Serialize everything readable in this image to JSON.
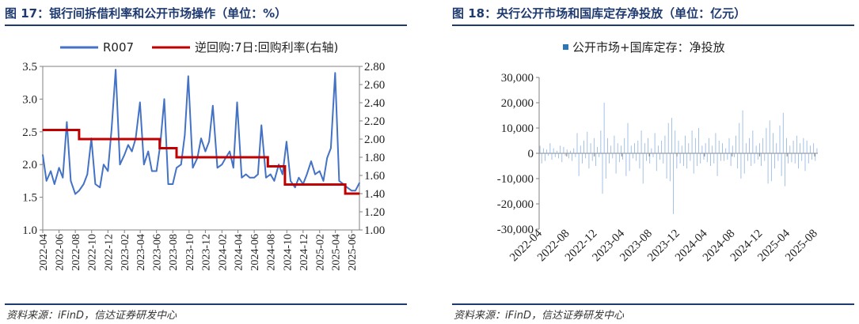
{
  "left_panel": {
    "title": "图 17：银行间拆借利率和公开市场操作（单位：%）",
    "source": "资料来源：iFinD，信达证券研发中心"
  },
  "right_panel": {
    "title": "图 18：央行公开市场和国库定存净投放（单位：亿元）",
    "source": "资料来源：iFinD，信达证券研发中心"
  },
  "chart_data": [
    {
      "type": "line",
      "legend_placement": "top",
      "x_tick_labels": [
        "2022-04",
        "2022-06",
        "2022-08",
        "2022-10",
        "2022-12",
        "2023-02",
        "2023-04",
        "2023-06",
        "2023-08",
        "2023-10",
        "2023-12",
        "2024-02",
        "2024-04",
        "2024-06",
        "2024-08",
        "2024-10",
        "2024-12",
        "2025-02",
        "2025-04",
        "2025-06"
      ],
      "y_left": {
        "ylim": [
          1.0,
          3.5
        ],
        "ticks": [
          "1.0",
          "1.5",
          "2.0",
          "2.5",
          "3.0",
          "3.5"
        ]
      },
      "y_right": {
        "ylim": [
          1.0,
          2.8
        ],
        "ticks": [
          "1.00",
          "1.20",
          "1.40",
          "1.60",
          "1.80",
          "2.00",
          "2.20",
          "2.40",
          "2.60",
          "2.80"
        ]
      },
      "series": [
        {
          "name": "R007",
          "axis": "left",
          "color": "#4472c4",
          "x": [
            "2022-04-01",
            "2022-04-15",
            "2022-05-01",
            "2022-05-15",
            "2022-06-01",
            "2022-06-15",
            "2022-06-30",
            "2022-07-15",
            "2022-08-01",
            "2022-08-15",
            "2022-09-01",
            "2022-09-15",
            "2022-09-30",
            "2022-10-15",
            "2022-11-01",
            "2022-11-15",
            "2022-12-01",
            "2022-12-15",
            "2022-12-30",
            "2023-01-15",
            "2023-02-01",
            "2023-02-15",
            "2023-03-01",
            "2023-03-15",
            "2023-03-31",
            "2023-04-15",
            "2023-05-01",
            "2023-05-15",
            "2023-06-01",
            "2023-06-15",
            "2023-06-30",
            "2023-07-15",
            "2023-08-01",
            "2023-08-15",
            "2023-09-01",
            "2023-09-15",
            "2023-09-28",
            "2023-10-15",
            "2023-11-01",
            "2023-11-15",
            "2023-12-01",
            "2023-12-15",
            "2023-12-29",
            "2024-01-15",
            "2024-02-01",
            "2024-02-15",
            "2024-03-01",
            "2024-03-15",
            "2024-03-29",
            "2024-04-15",
            "2024-05-01",
            "2024-05-15",
            "2024-06-01",
            "2024-06-15",
            "2024-06-28",
            "2024-07-15",
            "2024-08-01",
            "2024-08-15",
            "2024-09-01",
            "2024-09-15",
            "2024-09-30",
            "2024-10-15",
            "2024-11-01",
            "2024-11-15",
            "2024-12-01",
            "2024-12-15",
            "2024-12-31",
            "2025-01-15",
            "2025-02-01",
            "2025-02-15",
            "2025-03-01",
            "2025-03-15",
            "2025-03-31",
            "2025-04-15",
            "2025-05-01",
            "2025-05-15",
            "2025-06-01",
            "2025-06-15",
            "2025-06-30"
          ],
          "values": [
            2.15,
            1.75,
            1.9,
            1.7,
            1.95,
            1.8,
            2.65,
            1.75,
            1.55,
            1.6,
            1.7,
            1.85,
            2.4,
            1.7,
            1.65,
            2.0,
            1.9,
            2.55,
            3.45,
            2.0,
            2.15,
            2.3,
            2.2,
            2.4,
            2.95,
            2.0,
            2.2,
            1.9,
            1.9,
            2.3,
            3.0,
            1.7,
            1.7,
            1.95,
            2.0,
            2.45,
            3.35,
            1.95,
            2.1,
            2.4,
            2.2,
            2.35,
            2.9,
            1.95,
            2.0,
            2.1,
            2.2,
            1.95,
            2.95,
            1.8,
            1.85,
            1.8,
            1.8,
            1.85,
            2.6,
            1.8,
            1.85,
            1.75,
            2.0,
            1.85,
            2.35,
            1.75,
            1.65,
            1.8,
            1.7,
            1.85,
            2.05,
            1.85,
            1.9,
            1.75,
            2.1,
            2.25,
            3.4,
            1.75,
            1.7,
            1.65,
            1.6,
            1.6,
            1.72
          ]
        },
        {
          "name": "逆回购:7日:回购利率(右轴)",
          "axis": "right",
          "color": "#c00000",
          "step": true,
          "x": [
            "2022-04-01",
            "2022-08-15",
            "2023-06-13",
            "2023-08-15",
            "2024-07-22",
            "2024-09-24",
            "2025-05-08",
            "2025-06-30"
          ],
          "values": [
            2.1,
            2.0,
            1.9,
            1.8,
            1.7,
            1.5,
            1.4,
            1.4
          ]
        }
      ]
    },
    {
      "type": "bar",
      "legend_placement": "top",
      "x_tick_labels": [
        "2022-04",
        "2022-08",
        "2022-12",
        "2023-04",
        "2023-08",
        "2023-12",
        "2024-04",
        "2024-08",
        "2024-12",
        "2025-04",
        "2025-08"
      ],
      "ylim": [
        -30000,
        30000
      ],
      "y_ticks": [
        "-30,000",
        "-20,000",
        "-10,000",
        "0",
        "10,000",
        "20,000",
        "30,000"
      ],
      "series": [
        {
          "name": "公开市场+国库定存：净投放",
          "color": "#2e75b6",
          "x_start": "2022-04-01",
          "x_end": "2025-08-15",
          "values": [
            3000,
            -4000,
            2000,
            -3000,
            1500,
            -1000,
            4000,
            -2500,
            2000,
            -1500,
            1000,
            -2000,
            3000,
            -3500,
            2500,
            -1000,
            1500,
            -2000,
            1000,
            -3000,
            2000,
            -1500,
            8000,
            -9000,
            3000,
            -4000,
            5000,
            -2000,
            8500,
            -6000,
            4000,
            -3000,
            6000,
            -5000,
            2500,
            -1500,
            9000,
            -16000,
            20000,
            -10000,
            6000,
            -4000,
            3000,
            -2000,
            7000,
            -8000,
            4000,
            -3500,
            3000,
            -2500,
            6000,
            -9000,
            12000,
            -7000,
            3000,
            -2000,
            4000,
            -3000,
            5000,
            -6000,
            9000,
            -12000,
            4000,
            -3000,
            6000,
            -4000,
            2000,
            -1500,
            8000,
            -7000,
            3000,
            -2500,
            5000,
            -4000,
            7000,
            -10000,
            12000,
            -11000,
            14000,
            -24000,
            9000,
            -6000,
            5000,
            -4000,
            3000,
            -5000,
            7000,
            -6000,
            4000,
            -3000,
            9000,
            -8000,
            6000,
            -5000,
            10000,
            -4000,
            3000,
            -2500,
            4000,
            -3500,
            6000,
            -5000,
            3000,
            -4000,
            8000,
            -9000,
            5000,
            -3000,
            4000,
            -3000,
            2000,
            -2500,
            6000,
            -5000,
            3000,
            -1500,
            7000,
            -6000,
            12000,
            -10000,
            17000,
            -8000,
            4000,
            -3000,
            6000,
            -5000,
            9000,
            -4000,
            3000,
            -2500,
            4000,
            -5000,
            6000,
            -3000,
            10000,
            -12000,
            13000,
            -11000,
            8000,
            -6000,
            4000,
            -3000,
            11000,
            -9000,
            16000,
            -13000,
            6000,
            -4000,
            3000,
            -3500,
            5000,
            -4000,
            7000,
            -6000,
            4000,
            -3000,
            6000,
            -7000,
            5000,
            -4000,
            3000,
            -2500,
            4000,
            -3000,
            2000
          ]
        }
      ]
    }
  ]
}
